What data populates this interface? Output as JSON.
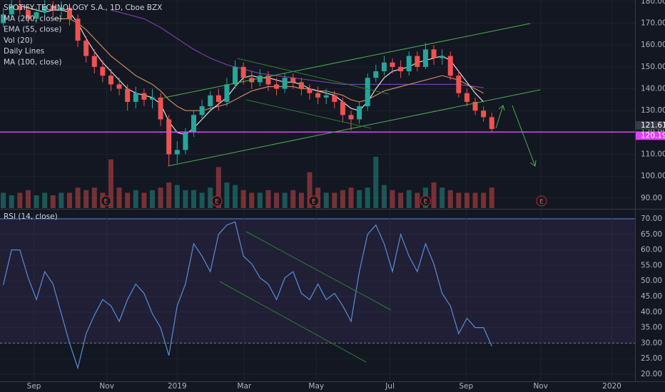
{
  "chart_data": [
    {
      "type": "candlestick",
      "title": "SPOTIFY TECHNOLOGY S.A., 1D, Cboe BZX",
      "x": [
        0,
        1,
        2,
        3,
        4,
        5,
        6,
        7,
        8,
        9,
        10,
        11,
        12,
        13,
        14,
        15,
        16,
        17,
        18,
        19,
        20,
        21,
        22,
        23,
        24,
        25,
        26,
        27,
        28,
        29,
        30,
        31,
        32,
        33,
        34,
        35,
        36,
        37,
        38,
        39,
        40,
        41,
        42,
        43,
        44,
        45,
        46,
        47,
        48,
        49,
        50,
        51,
        52,
        53,
        54,
        55,
        56,
        57,
        58,
        59
      ],
      "open": [
        170,
        174,
        178,
        176,
        172,
        175,
        178,
        176,
        177,
        172,
        162,
        155,
        150,
        146,
        142,
        140,
        134,
        138,
        135,
        136,
        126,
        110,
        112,
        120,
        128,
        132,
        137,
        134,
        142,
        150,
        145,
        143,
        146,
        142,
        140,
        145,
        143,
        140,
        138,
        136,
        137,
        134,
        128,
        126,
        132,
        145,
        148,
        152,
        150,
        148,
        155,
        150,
        158,
        154,
        155,
        146,
        138,
        134,
        130,
        127
      ],
      "high": [
        177,
        181,
        181,
        178,
        177,
        181,
        180,
        180,
        179,
        174,
        164,
        158,
        153,
        149,
        145,
        142,
        141,
        140,
        140,
        138,
        128,
        116,
        122,
        130,
        135,
        139,
        140,
        145,
        153,
        152,
        148,
        149,
        148,
        145,
        147,
        147,
        145,
        142,
        141,
        140,
        139,
        136,
        130,
        134,
        147,
        151,
        155,
        154,
        153,
        157,
        157,
        161,
        160,
        158,
        157,
        148,
        140,
        136,
        132,
        129
      ],
      "low": [
        168,
        172,
        174,
        170,
        170,
        173,
        173,
        173,
        169,
        159,
        152,
        147,
        143,
        139,
        137,
        130,
        131,
        132,
        131,
        123,
        105,
        106,
        110,
        118,
        126,
        130,
        130,
        132,
        140,
        142,
        140,
        141,
        139,
        137,
        138,
        140,
        137,
        135,
        133,
        133,
        131,
        125,
        121,
        124,
        130,
        143,
        146,
        147,
        145,
        146,
        148,
        149,
        151,
        151,
        144,
        136,
        132,
        128,
        125,
        120
      ],
      "close": [
        174,
        178,
        176,
        172,
        175,
        178,
        176,
        177,
        172,
        162,
        155,
        150,
        146,
        142,
        140,
        134,
        138,
        135,
        136,
        126,
        110,
        112,
        120,
        128,
        132,
        137,
        134,
        142,
        150,
        145,
        143,
        146,
        142,
        140,
        145,
        143,
        140,
        138,
        136,
        137,
        134,
        128,
        126,
        132,
        145,
        148,
        152,
        150,
        148,
        155,
        150,
        158,
        154,
        155,
        146,
        138,
        134,
        130,
        127,
        121.61
      ],
      "up_color": "#26a69a",
      "down_color": "#ef5350",
      "series": [
        {
          "name": "MA (200, close)",
          "color": "#7b3fa6",
          "values": [
            null,
            null,
            null,
            null,
            null,
            null,
            null,
            null,
            null,
            null,
            null,
            null,
            null,
            176,
            175,
            174,
            173,
            172,
            170,
            168,
            165.5,
            163,
            160.5,
            158,
            156,
            154,
            152.5,
            151,
            150,
            149,
            148,
            147,
            146.5,
            146,
            145.5,
            145,
            144.5,
            144,
            143.5,
            143,
            142.5,
            142,
            142,
            142,
            142,
            142,
            142,
            142,
            142,
            142,
            142,
            142,
            142,
            142,
            142,
            142,
            141.5,
            141,
            140.5,
            null
          ]
        },
        {
          "name": "EMA (55, close)",
          "color": "#c58a5a",
          "values": [
            null,
            null,
            null,
            null,
            null,
            null,
            172,
            172,
            172,
            170,
            167,
            163,
            159,
            155,
            152,
            149,
            146,
            144,
            142,
            139,
            135,
            132,
            130,
            130,
            130,
            131,
            132,
            133,
            135,
            137,
            139,
            140,
            141,
            141,
            141,
            141,
            140,
            140,
            139,
            139,
            138,
            137,
            135,
            134,
            135,
            137,
            139,
            140,
            141,
            142,
            143,
            144,
            145,
            146,
            145,
            144,
            142,
            140,
            138,
            null
          ]
        },
        {
          "name": "MA (100, close)",
          "color": "#e0e0e0",
          "values": [
            null,
            null,
            178,
            177,
            176,
            175,
            176,
            176,
            175,
            170,
            163,
            157,
            152,
            148,
            144,
            140,
            138,
            137,
            136,
            133,
            125,
            120,
            119,
            122,
            126,
            130,
            133,
            136,
            141,
            145,
            146,
            145,
            145,
            144,
            143,
            143,
            142,
            140,
            139,
            138,
            137,
            134,
            131,
            130,
            134,
            140,
            145,
            148,
            149,
            150,
            152,
            153,
            154,
            155,
            153,
            148,
            143,
            138,
            134,
            null
          ]
        }
      ],
      "volume": {
        "name": "Vol (20)",
        "values": [
          3,
          2.5,
          3,
          3.5,
          2.5,
          3,
          2.5,
          3,
          3,
          4,
          3.5,
          4,
          3,
          9.5,
          4,
          3,
          3.5,
          3,
          3.5,
          4,
          5,
          4.5,
          3.5,
          3.5,
          3,
          4,
          8,
          5,
          4.5,
          3.5,
          3,
          3,
          3.5,
          3,
          3,
          3.5,
          3,
          7,
          4,
          3,
          3,
          3.5,
          4,
          3.5,
          4,
          10,
          4.5,
          3.5,
          3,
          3.5,
          3,
          4,
          5,
          4,
          3.5,
          3,
          3,
          3,
          3,
          4
        ]
      },
      "daily_lines": "Daily Lines",
      "hline": 120.19,
      "hline_color": "#e040fb",
      "earnings": {
        "x": [
          12.4,
          25.8,
          37.5,
          51,
          65
        ],
        "labels": [
          "E",
          "E",
          "E",
          "E",
          "E"
        ]
      },
      "xlim": [
        -0.4,
        76.3
      ],
      "ylim": [
        85.4,
        180.6
      ],
      "yticks": [
        {
          "value": 90,
          "label": "90.00"
        },
        {
          "value": 100,
          "label": "100.00"
        },
        {
          "value": 110,
          "label": "110.00"
        },
        {
          "value": 120,
          "label": "120.00"
        },
        {
          "value": 130,
          "label": "130.00"
        },
        {
          "value": 140,
          "label": "140.00"
        },
        {
          "value": 150,
          "label": "150.00"
        },
        {
          "value": 160,
          "label": "160.00"
        },
        {
          "value": 170,
          "label": "170.00"
        },
        {
          "value": 180,
          "label": "180.00"
        }
      ],
      "grid": true
    },
    {
      "type": "line",
      "title": "RSI (14, close)",
      "x": [
        0,
        1,
        2,
        3,
        4,
        5,
        6,
        7,
        8,
        9,
        10,
        11,
        12,
        13,
        14,
        15,
        16,
        17,
        18,
        19,
        20,
        21,
        22,
        23,
        24,
        25,
        26,
        27,
        28,
        29,
        30,
        31,
        32,
        33,
        34,
        35,
        36,
        37,
        38,
        39,
        40,
        41,
        42,
        43,
        44,
        45,
        46,
        47,
        48,
        49,
        50,
        51,
        52,
        53,
        54,
        55,
        56,
        57,
        58,
        59
      ],
      "series": [
        {
          "name": "RSI (14, close)",
          "color": "#5b8dd6",
          "values": [
            48.7,
            60,
            60,
            51,
            44,
            53,
            49,
            39.5,
            30,
            22,
            33,
            39,
            44,
            42,
            37,
            44,
            49,
            46,
            39.5,
            35,
            26,
            42,
            49,
            62,
            58,
            53,
            65,
            68,
            69,
            58,
            55.5,
            51,
            49,
            44,
            51,
            53,
            46,
            44,
            49,
            44,
            46,
            42,
            37,
            53,
            65,
            68,
            62,
            53,
            65,
            58,
            53,
            62,
            55.5,
            46,
            42,
            33,
            38,
            35,
            35,
            29
          ]
        }
      ],
      "band": [
        30,
        70
      ],
      "band_color": "#7e57c2",
      "xlim": [
        -0.4,
        76.3
      ],
      "ylim": [
        17.7,
        72.75
      ],
      "yticks": [
        {
          "value": 20,
          "label": "20.00"
        },
        {
          "value": 25,
          "label": "25.00"
        },
        {
          "value": 30,
          "label": "30.00"
        },
        {
          "value": 35,
          "label": "35.00"
        },
        {
          "value": 40,
          "label": "40.00"
        },
        {
          "value": 45,
          "label": "45.00"
        },
        {
          "value": 50,
          "label": "50.00"
        },
        {
          "value": 55,
          "label": "55.00"
        },
        {
          "value": 60,
          "label": "60.00"
        },
        {
          "value": 65,
          "label": "65.00"
        },
        {
          "value": 70,
          "label": "70.00"
        }
      ],
      "xticks": [
        {
          "value": 3.7,
          "label": "Sep"
        },
        {
          "value": 12.5,
          "label": "Nov"
        },
        {
          "value": 21,
          "label": "2019"
        },
        {
          "value": 29.1,
          "label": "Mar"
        },
        {
          "value": 37.8,
          "label": "May"
        },
        {
          "value": 46.7,
          "label": "Jul"
        },
        {
          "value": 55.9,
          "label": "Sep"
        },
        {
          "value": 64.9,
          "label": "Nov"
        },
        {
          "value": 73.5,
          "label": "2020"
        }
      ],
      "grid": true
    }
  ]
}
